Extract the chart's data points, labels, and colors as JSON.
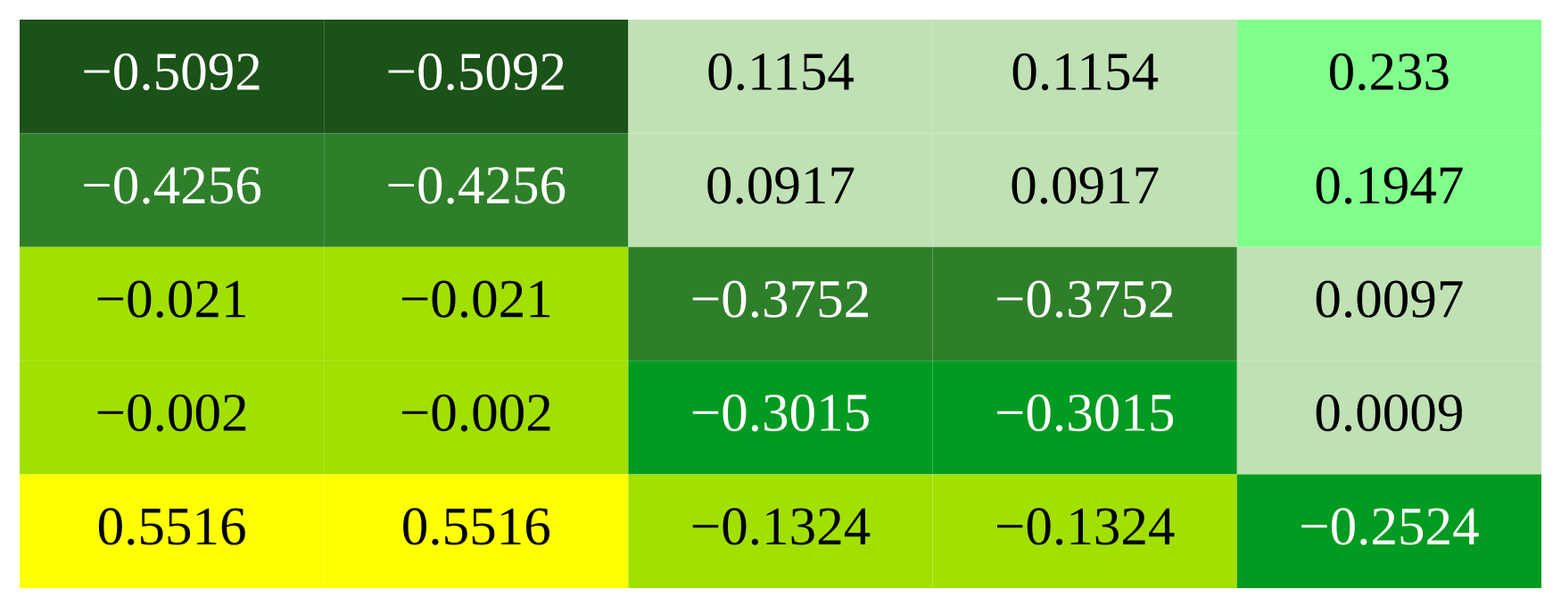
{
  "chart_data": {
    "type": "heatmap",
    "categories": [
      null,
      null,
      null,
      null,
      null
    ],
    "y_categories": [
      null,
      null,
      null,
      null,
      null
    ],
    "cells": [
      [
        -0.5092,
        -0.5092,
        0.1154,
        0.1154,
        0.233
      ],
      [
        -0.4256,
        -0.4256,
        0.0917,
        0.0917,
        0.1947
      ],
      [
        -0.021,
        -0.021,
        -0.3752,
        -0.3752,
        0.0097
      ],
      [
        -0.002,
        -0.002,
        -0.3015,
        -0.3015,
        0.0009
      ],
      [
        0.5516,
        0.5516,
        -0.1324,
        -0.1324,
        -0.2524
      ]
    ],
    "cell_labels": [
      [
        "−0.5092",
        "−0.5092",
        "0.1154",
        "0.1154",
        "0.233"
      ],
      [
        "−0.4256",
        "−0.4256",
        "0.0917",
        "0.0917",
        "0.1947"
      ],
      [
        "−0.021",
        "−0.021",
        "−0.3752",
        "−0.3752",
        "0.0097"
      ],
      [
        "−0.002",
        "−0.002",
        "−0.3015",
        "−0.3015",
        "0.0009"
      ],
      [
        "0.5516",
        "0.5516",
        "−0.1324",
        "−0.1324",
        "−0.2524"
      ]
    ],
    "colors": [
      [
        "#1b5217",
        "#1b5217",
        "#bfe1b4",
        "#bfe1b4",
        "#80ff8b"
      ],
      [
        "#2e7f2a",
        "#2e7f2a",
        "#bfe1b4",
        "#bfe1b4",
        "#80ff8b"
      ],
      [
        "#a1e000",
        "#a1e000",
        "#2e7f2a",
        "#2e7f2a",
        "#bfe1b4"
      ],
      [
        "#a1e000",
        "#a1e000",
        "#009b20",
        "#009b20",
        "#bfe1b4"
      ],
      [
        "#ffff00",
        "#ffff00",
        "#a1e000",
        "#a1e000",
        "#009b20"
      ]
    ]
  }
}
